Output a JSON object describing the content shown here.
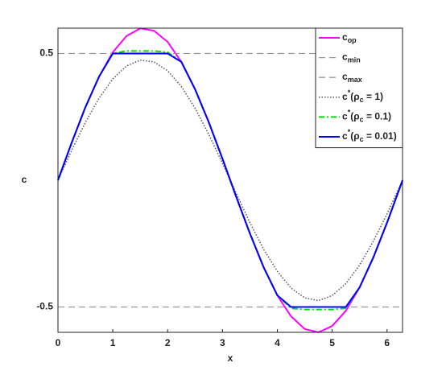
{
  "chart_data": {
    "type": "line",
    "xlabel": "x",
    "ylabel": "c",
    "xlim": [
      0,
      6.2832
    ],
    "ylim": [
      -0.6,
      0.6
    ],
    "xticks": [
      0,
      1,
      2,
      3,
      4,
      5,
      6
    ],
    "yticks": [
      -0.5,
      0.5
    ],
    "legend": "upper right",
    "x": [
      0,
      0.25,
      0.5,
      0.75,
      1,
      1.25,
      1.5,
      1.75,
      2,
      2.25,
      2.5,
      2.75,
      3,
      3.25,
      3.5,
      3.75,
      4,
      4.25,
      4.5,
      4.75,
      5,
      5.25,
      5.5,
      5.75,
      6,
      6.25,
      6.2832
    ],
    "series": [
      {
        "name_parts": [
          [
            "c",
            ""
          ],
          [
            "op",
            "sub"
          ]
        ],
        "color": "#ff00ff",
        "style": "solid",
        "width": 2,
        "values": [
          0,
          0.148,
          0.288,
          0.409,
          0.505,
          0.569,
          0.599,
          0.59,
          0.546,
          0.467,
          0.359,
          0.229,
          0.085,
          -0.065,
          -0.21,
          -0.343,
          -0.454,
          -0.537,
          -0.587,
          -0.6,
          -0.575,
          -0.515,
          -0.423,
          -0.305,
          -0.168,
          -0.02,
          0
        ]
      },
      {
        "name_parts": [
          [
            "c",
            ""
          ],
          [
            "min",
            "sub"
          ]
        ],
        "color": "#999999",
        "style": "dashed",
        "width": 1.3,
        "value": -0.5
      },
      {
        "name_parts": [
          [
            "c",
            ""
          ],
          [
            "max",
            "sub"
          ]
        ],
        "color": "#999999",
        "style": "dashed",
        "width": 1.3,
        "value": 0.5
      },
      {
        "name_parts": [
          [
            "c",
            ""
          ],
          [
            "*",
            "sup"
          ],
          [
            "(",
            ""
          ],
          [
            "ρ",
            ""
          ],
          [
            "c",
            "sub"
          ],
          [
            " = 1)",
            ""
          ]
        ],
        "color": "#555555",
        "style": "dotted",
        "width": 1.5,
        "values": [
          0,
          0.118,
          0.228,
          0.324,
          0.4,
          0.451,
          0.474,
          0.467,
          0.432,
          0.37,
          0.284,
          0.181,
          0.067,
          -0.051,
          -0.167,
          -0.272,
          -0.359,
          -0.425,
          -0.464,
          -0.475,
          -0.455,
          -0.408,
          -0.335,
          -0.241,
          -0.133,
          -0.016,
          0
        ]
      },
      {
        "name_parts": [
          [
            "c",
            ""
          ],
          [
            "*",
            "sup"
          ],
          [
            "(",
            ""
          ],
          [
            "ρ",
            ""
          ],
          [
            "c",
            "sub"
          ],
          [
            " = 0.1)",
            ""
          ]
        ],
        "color": "#00dd00",
        "style": "dashdot",
        "width": 2,
        "values": [
          0,
          0.148,
          0.288,
          0.409,
          0.5,
          0.51,
          0.51,
          0.51,
          0.505,
          0.467,
          0.359,
          0.229,
          0.085,
          -0.065,
          -0.21,
          -0.343,
          -0.454,
          -0.505,
          -0.51,
          -0.51,
          -0.51,
          -0.505,
          -0.423,
          -0.305,
          -0.168,
          -0.02,
          0
        ]
      },
      {
        "name_parts": [
          [
            "c",
            ""
          ],
          [
            "*",
            "sup"
          ],
          [
            "(",
            ""
          ],
          [
            "ρ",
            ""
          ],
          [
            "c",
            "sub"
          ],
          [
            " = 0.01)",
            ""
          ]
        ],
        "color": "#0000ff",
        "style": "solid",
        "width": 2,
        "values": [
          0,
          0.148,
          0.288,
          0.409,
          0.5,
          0.5,
          0.5,
          0.5,
          0.5,
          0.467,
          0.359,
          0.229,
          0.085,
          -0.065,
          -0.21,
          -0.343,
          -0.454,
          -0.5,
          -0.5,
          -0.5,
          -0.5,
          -0.5,
          -0.423,
          -0.305,
          -0.168,
          -0.02,
          0
        ]
      }
    ]
  }
}
